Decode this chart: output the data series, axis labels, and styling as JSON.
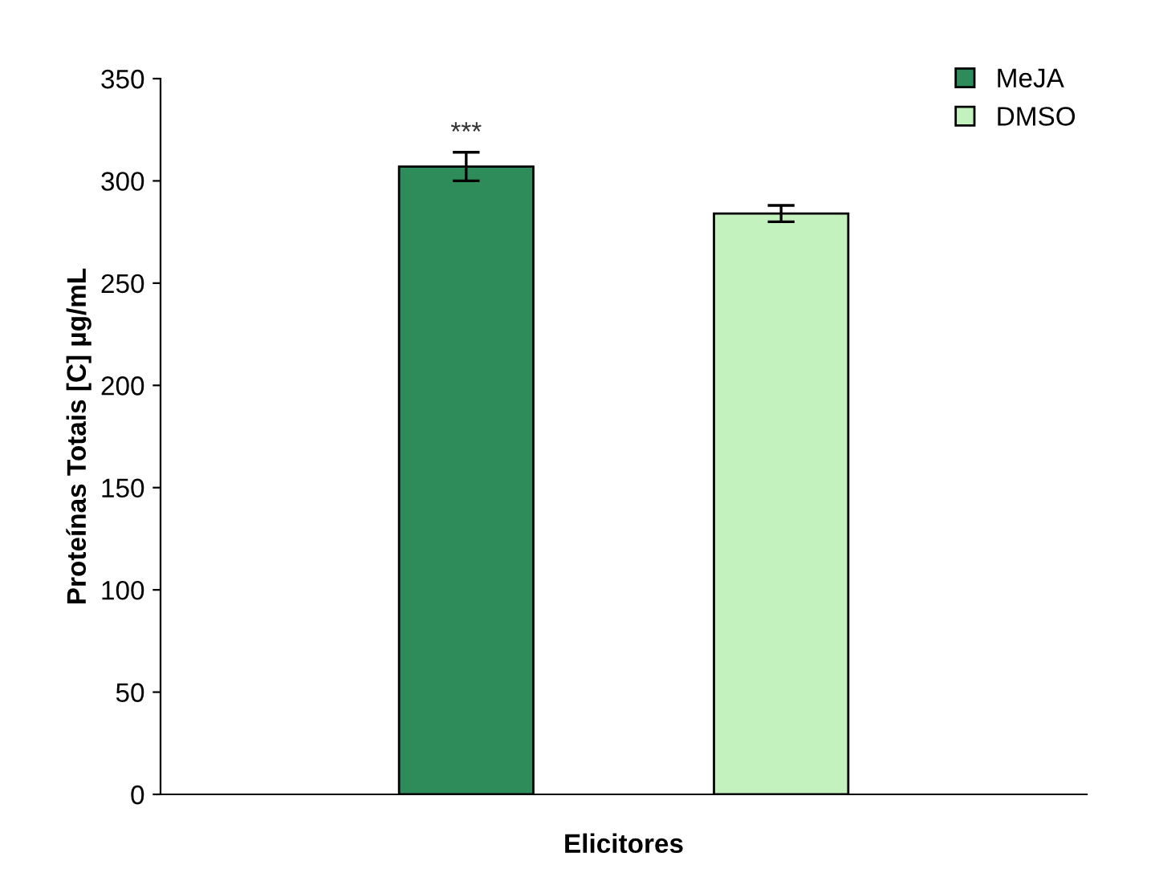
{
  "chart_data": {
    "type": "bar",
    "xlabel": "Elicitores",
    "ylabel": "Proteínas Totais [C] µg/mL",
    "categories": [
      null
    ],
    "series": [
      {
        "name": "MeJA",
        "color": "#2e8b5a",
        "values": [
          307
        ],
        "errors": [
          7
        ]
      },
      {
        "name": "DMSO",
        "color": "#c4f2bf",
        "values": [
          284
        ],
        "errors": [
          4
        ]
      }
    ],
    "annotations": [
      "***"
    ],
    "ylim": [
      0,
      350
    ],
    "yticks": [
      0,
      50,
      100,
      150,
      200,
      250,
      300,
      350
    ],
    "grid": false,
    "legend": "top right"
  }
}
